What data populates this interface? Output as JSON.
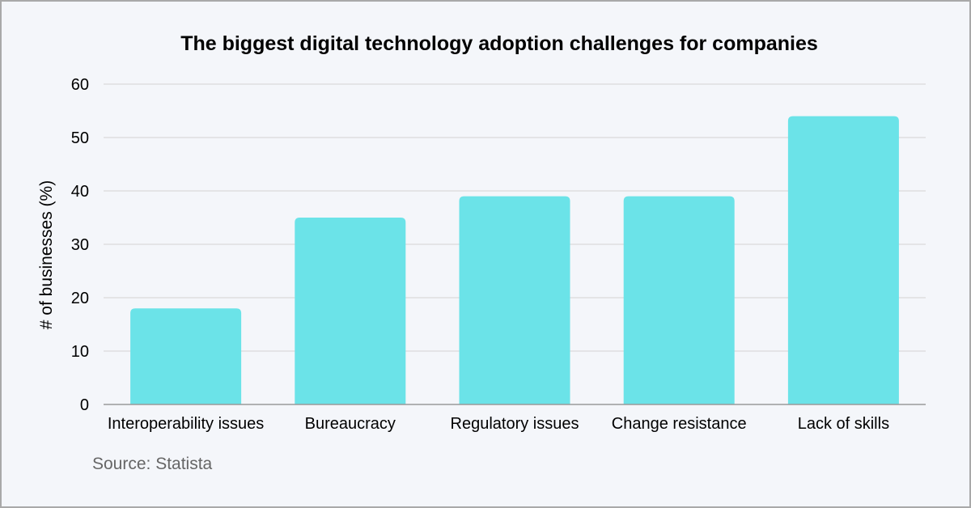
{
  "chart_data": {
    "type": "bar",
    "title": "The biggest digital technology adoption challenges for companies",
    "xlabel": "",
    "ylabel": "# of businesses (%)",
    "categories": [
      "Interoperability issues",
      "Bureaucracy",
      "Regulatory issues",
      "Change resistance",
      "Lack of skills"
    ],
    "values": [
      18,
      35,
      39,
      39,
      54
    ],
    "ylim": [
      0,
      60
    ],
    "yticks": [
      0,
      10,
      20,
      30,
      40,
      50,
      60
    ],
    "grid": true,
    "legend": "none",
    "bar_color": "#6be3e8"
  },
  "source": "Source: Statista"
}
